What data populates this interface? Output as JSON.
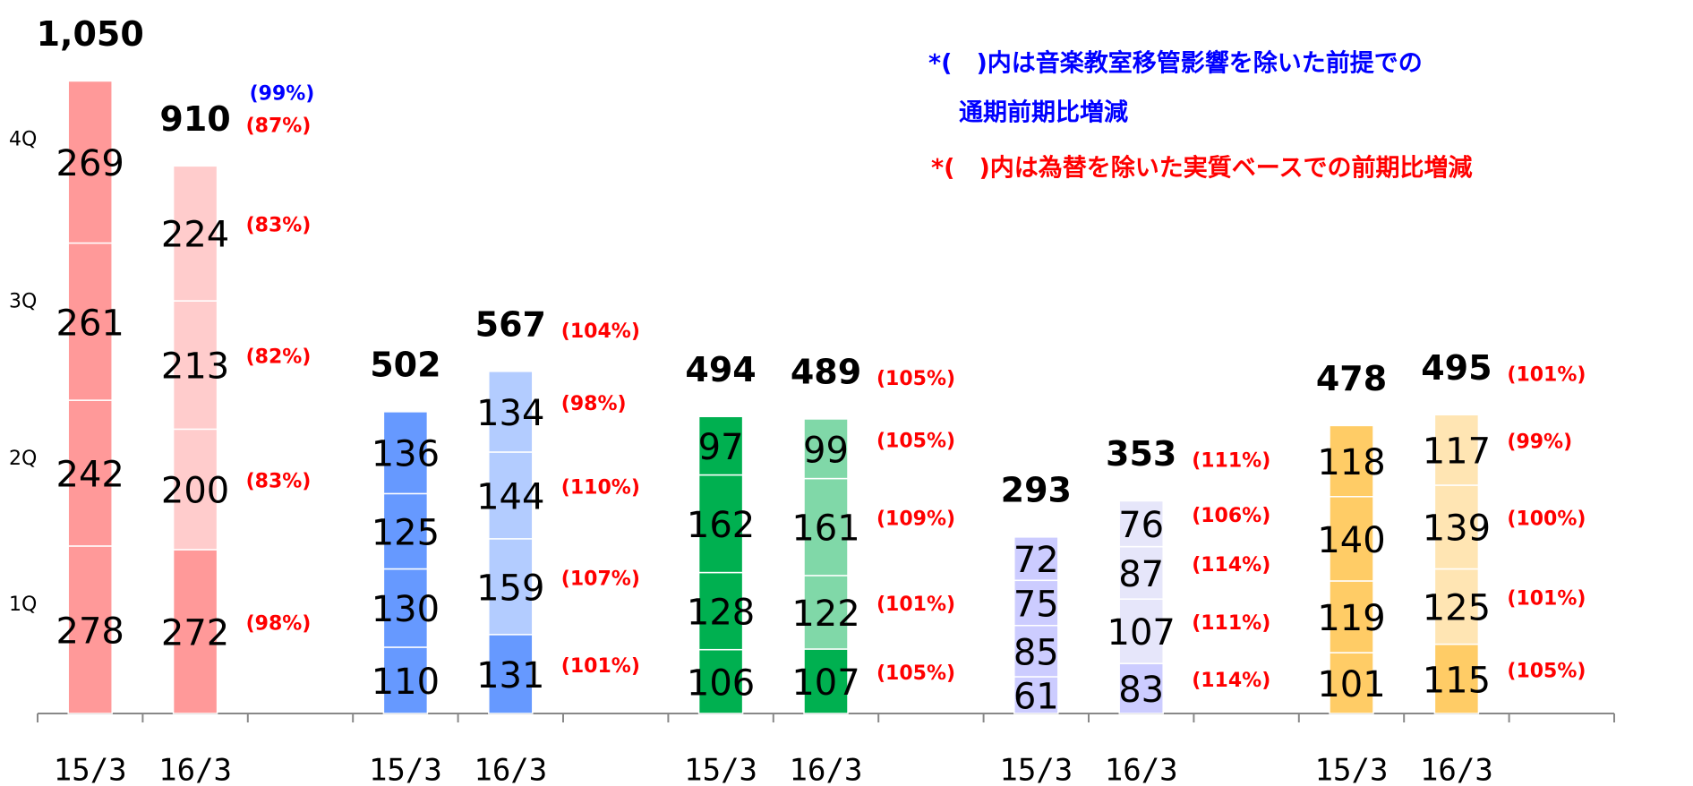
{
  "chart_data": {
    "type": "stacked_bar",
    "categories": [
      "15/3",
      "16/3",
      "15/3",
      "16/3",
      "15/3",
      "16/3",
      "15/3",
      "16/3",
      "15/3",
      "16/3"
    ],
    "series": [
      {
        "name": "1Q",
        "values": [
          278,
          272,
          110,
          131,
          106,
          107,
          61,
          83,
          101,
          115
        ],
        "change_labels": [
          null,
          "(98%)",
          null,
          "(101%)",
          null,
          "(105%)",
          null,
          "(114%)",
          null,
          "(105%)"
        ]
      },
      {
        "name": "2Q",
        "values": [
          242,
          200,
          130,
          159,
          128,
          122,
          85,
          107,
          119,
          125
        ],
        "change_labels": [
          null,
          "(83%)",
          null,
          "(107%)",
          null,
          "(101%)",
          null,
          "(111%)",
          null,
          "(101%)"
        ]
      },
      {
        "name": "3Q",
        "values": [
          261,
          213,
          125,
          144,
          162,
          161,
          75,
          87,
          140,
          139
        ],
        "change_labels": [
          null,
          "(82%)",
          null,
          "(110%)",
          null,
          "(109%)",
          null,
          "(114%)",
          null,
          "(100%)"
        ]
      },
      {
        "name": "4Q",
        "values": [
          269,
          224,
          136,
          134,
          97,
          99,
          72,
          76,
          118,
          117
        ],
        "change_labels": [
          null,
          "(83%)",
          null,
          "(98%)",
          null,
          "(105%)",
          null,
          "(106%)",
          null,
          "(99%)"
        ]
      }
    ],
    "totals": [
      {
        "value": 1050,
        "label": "1,050"
      },
      910,
      502,
      567,
      494,
      489,
      293,
      353,
      478,
      495
    ],
    "total_change_labels": [
      null,
      "(87%)",
      null,
      "(104%)",
      null,
      "(105%)",
      null,
      "(111%)",
      null,
      "(101%)"
    ],
    "adjusted_total_change_labels": [
      null,
      "(99%)",
      null,
      null,
      null,
      null,
      null,
      null,
      null,
      null
    ],
    "segment_colors": [
      [
        "#ff9999",
        "#ff9999",
        "#ff9999",
        "#ff9999"
      ],
      [
        "#ff9999",
        "#ffcccc",
        "#ffcccc",
        "#ffcccc"
      ],
      [
        "#6699ff",
        "#6699ff",
        "#6699ff",
        "#6699ff"
      ],
      [
        "#6699ff",
        "#b3ccff",
        "#b3ccff",
        "#b3ccff"
      ],
      [
        "#00b050",
        "#00b050",
        "#00b050",
        "#00b050"
      ],
      [
        "#00b050",
        "#80d8a8",
        "#80d8a8",
        "#80d8a8"
      ],
      [
        "#ccccff",
        "#ccccff",
        "#ccccff",
        "#ccccff"
      ],
      [
        "#ccccff",
        "#e6e6fa",
        "#e6e6fa",
        "#e6e6fa"
      ],
      [
        "#ffcc66",
        "#ffcc66",
        "#ffcc66",
        "#ffcc66"
      ],
      [
        "#ffcc66",
        "#ffe5b3",
        "#ffe5b3",
        "#ffe5b3"
      ]
    ],
    "ylim": [
      0,
      1180
    ],
    "notes": [
      {
        "lines": [
          "*(　)内は音楽教室移管影響を除いた前提での",
          "通期前期比増減"
        ],
        "color": "#0000ff"
      },
      {
        "lines": [
          "*(　)内は為替を除いた実質ベースでの前期比増減"
        ],
        "color": "#ff0000"
      }
    ]
  }
}
